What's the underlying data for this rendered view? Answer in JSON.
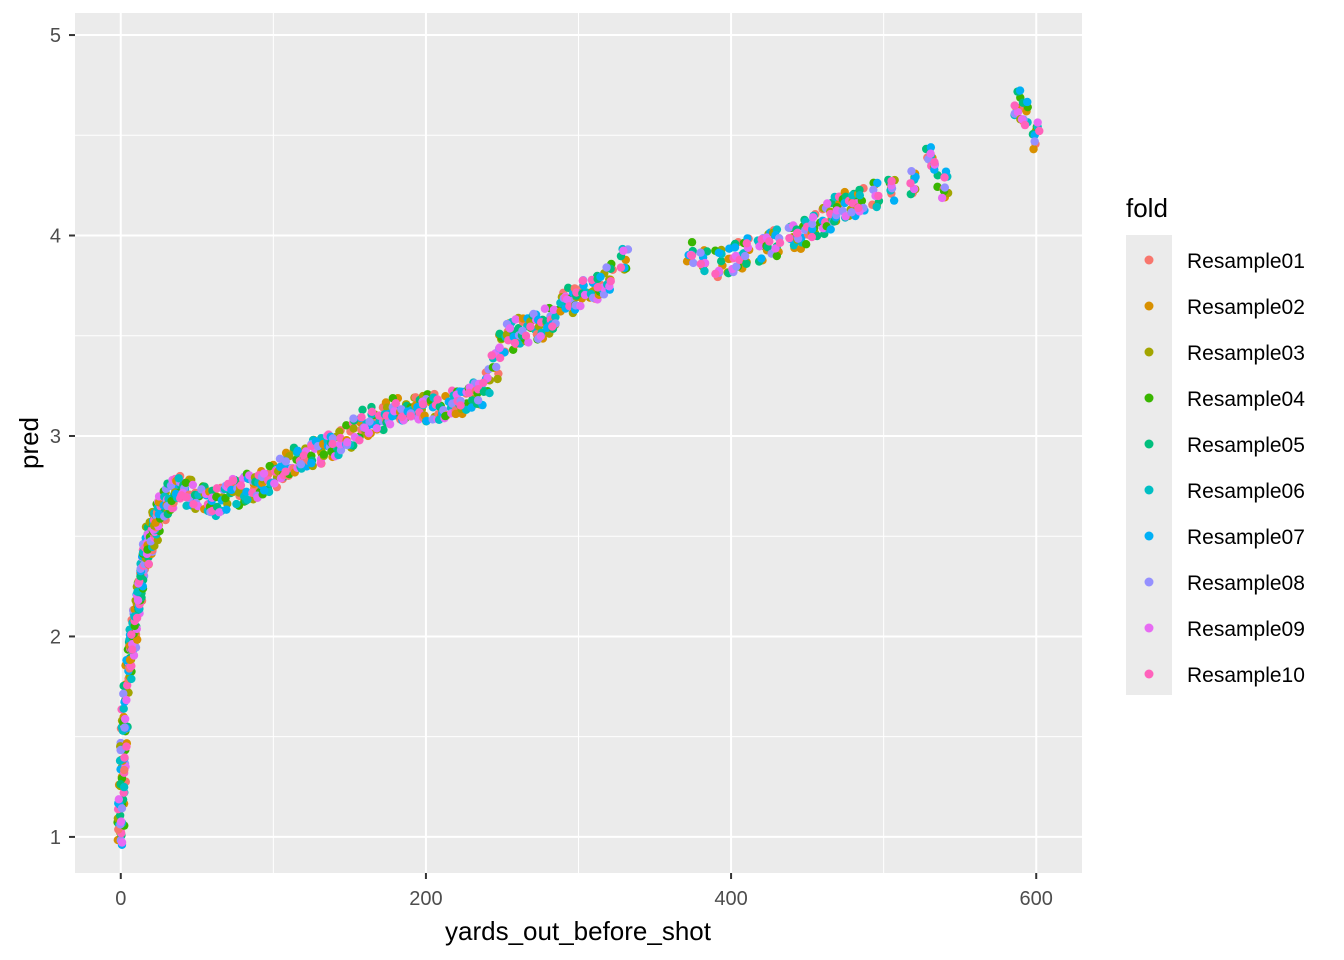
{
  "chart_data": {
    "type": "scatter",
    "xlabel": "yards_out_before_shot",
    "ylabel": "pred",
    "xlim": [
      -30,
      630
    ],
    "ylim": [
      0.82,
      5.11
    ],
    "x_ticks": [
      0,
      200,
      400,
      600
    ],
    "y_ticks": [
      1,
      2,
      3,
      4,
      5
    ],
    "grid": true,
    "background": "#ebebeb",
    "legend": {
      "title": "fold",
      "placement": "right",
      "entries": [
        "Resample01",
        "Resample02",
        "Resample03",
        "Resample04",
        "Resample05",
        "Resample06",
        "Resample07",
        "Resample08",
        "Resample09",
        "Resample10"
      ]
    },
    "series_colors": [
      "#f8766d",
      "#d89000",
      "#a3a500",
      "#39b600",
      "#00bf7d",
      "#00bfc4",
      "#00b0f6",
      "#9590ff",
      "#e76bf3",
      "#ff62bc"
    ],
    "x": [
      0,
      0,
      1,
      1,
      2,
      2,
      3,
      4,
      5,
      6,
      7,
      8,
      9,
      10,
      11,
      12,
      13,
      14,
      15,
      16,
      17,
      18,
      19,
      20,
      21,
      22,
      23,
      24,
      25,
      27,
      30,
      32,
      35,
      38,
      40,
      45,
      50,
      55,
      60,
      65,
      70,
      75,
      80,
      85,
      90,
      95,
      100,
      105,
      110,
      115,
      120,
      125,
      130,
      135,
      140,
      145,
      150,
      155,
      160,
      165,
      170,
      175,
      180,
      185,
      190,
      195,
      200,
      205,
      210,
      215,
      220,
      225,
      230,
      235,
      240,
      245,
      250,
      255,
      260,
      265,
      270,
      275,
      280,
      285,
      290,
      295,
      300,
      305,
      310,
      315,
      320,
      330,
      373,
      382,
      392,
      400,
      405,
      410,
      420,
      425,
      430,
      440,
      445,
      450,
      455,
      460,
      465,
      470,
      475,
      480,
      485,
      495,
      505,
      520,
      530,
      535,
      540,
      588,
      592,
      600
    ],
    "y": [
      1.02,
      1.1,
      1.2,
      1.3,
      1.4,
      1.5,
      1.6,
      1.7,
      1.8,
      1.9,
      1.95,
      2.0,
      2.05,
      2.1,
      2.15,
      2.2,
      2.25,
      2.3,
      2.35,
      2.4,
      2.42,
      2.45,
      2.48,
      2.5,
      2.52,
      2.55,
      2.58,
      2.6,
      2.62,
      2.65,
      2.68,
      2.7,
      2.72,
      2.74,
      2.75,
      2.72,
      2.7,
      2.68,
      2.67,
      2.68,
      2.7,
      2.72,
      2.74,
      2.75,
      2.76,
      2.77,
      2.8,
      2.84,
      2.87,
      2.88,
      2.9,
      2.92,
      2.93,
      2.94,
      2.95,
      2.97,
      3.0,
      3.04,
      3.07,
      3.08,
      3.1,
      3.11,
      3.12,
      3.13,
      3.13,
      3.14,
      3.14,
      3.15,
      3.15,
      3.16,
      3.17,
      3.18,
      3.2,
      3.22,
      3.28,
      3.35,
      3.45,
      3.5,
      3.52,
      3.53,
      3.55,
      3.55,
      3.57,
      3.6,
      3.65,
      3.68,
      3.7,
      3.72,
      3.75,
      3.77,
      3.8,
      3.88,
      3.9,
      3.88,
      3.86,
      3.88,
      3.9,
      3.92,
      3.94,
      3.95,
      3.96,
      3.98,
      4.0,
      4.02,
      4.04,
      4.07,
      4.1,
      4.13,
      4.15,
      4.16,
      4.17,
      4.2,
      4.22,
      4.27,
      4.38,
      4.3,
      4.25,
      4.67,
      4.6,
      4.5
    ]
  }
}
